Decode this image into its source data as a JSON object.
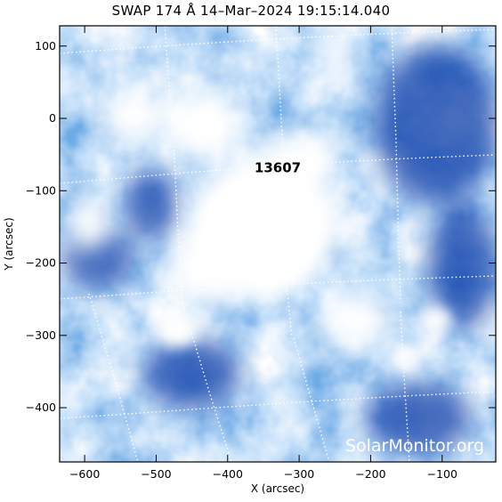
{
  "title": "SWAP 174 Å 14–Mar–2024 19:15:14.040",
  "xaxis": {
    "label": "X (arcsec)",
    "ticks": [
      "−600",
      "−500",
      "−400",
      "−300",
      "−200",
      "−100"
    ],
    "tick_values": [
      -600,
      -500,
      -400,
      -300,
      -200,
      -100
    ],
    "range": [
      -635,
      -25
    ]
  },
  "yaxis": {
    "label": "Y (arcsec)",
    "ticks": [
      "100",
      "0",
      "−100",
      "−200",
      "−300",
      "−400"
    ],
    "tick_values": [
      100,
      0,
      -100,
      -200,
      -300,
      -400
    ],
    "range": [
      -475,
      128
    ]
  },
  "region": {
    "label": "13607",
    "x": -330,
    "y": -68
  },
  "watermark": "SolarMonitor.org",
  "colors": {
    "low": "#0a3ca8",
    "mid": "#3c8ce6",
    "high": "#ffffff",
    "grid": "#ffffff"
  },
  "grid": true
}
